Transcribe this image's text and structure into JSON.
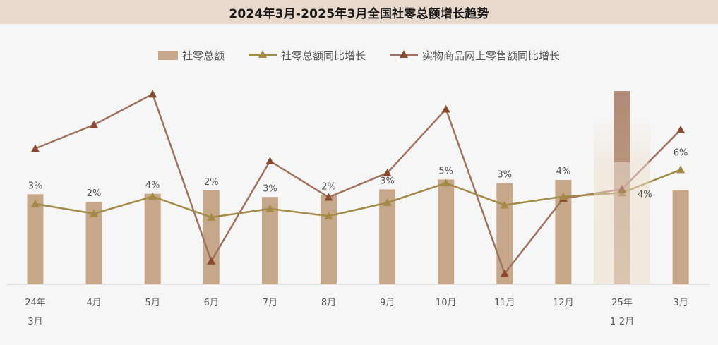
{
  "title": "2024年3月-2025年3月全国社零总额增长趋势",
  "legend": {
    "bar": "社零总额",
    "line1": "社零总额同比增长",
    "line2": "实物商品网上零售额同比增长"
  },
  "colors": {
    "bar": "#c6a78a",
    "bar_highlight_top": "#b08a76",
    "line1": "#a38a46",
    "line2": "#a0725e",
    "line2_marker": "#8a4a30",
    "highlight_bg": "#efe6da"
  },
  "chart_data": {
    "type": "bar+line",
    "categories": [
      [
        "24年",
        "3月"
      ],
      [
        "4月"
      ],
      [
        "5月"
      ],
      [
        "6月"
      ],
      [
        "7月"
      ],
      [
        "8月"
      ],
      [
        "9月"
      ],
      [
        "10月"
      ],
      [
        "11月"
      ],
      [
        "12月"
      ],
      [
        "25年",
        "1-2月"
      ],
      [
        "3月"
      ]
    ],
    "series": [
      {
        "name": "社零总额",
        "kind": "bar",
        "values": [
          39,
          35.7,
          39.2,
          40.7,
          37.8,
          38.7,
          41.1,
          45.4,
          43.8,
          45.2,
          83.7,
          40.9
        ]
      },
      {
        "name": "社零总额同比增长",
        "kind": "line",
        "values": [
          3.1,
          2.3,
          3.7,
          2.0,
          2.7,
          2.1,
          3.2,
          4.8,
          3.0,
          3.7,
          4.0,
          5.9
        ],
        "labels": [
          "3%",
          "2%",
          "4%",
          "2%",
          "3%",
          "2%",
          "3%",
          "5%",
          "3%",
          "4%",
          "4%",
          "6%"
        ]
      },
      {
        "name": "实物商品网上零售额同比增长",
        "kind": "line",
        "values": [
          11.0,
          14.8,
          19.7,
          -7.0,
          9.0,
          3.2,
          7.1,
          17.3,
          -9.0,
          3.0,
          4.5,
          14.0
        ]
      }
    ],
    "highlight_category_index": 10
  }
}
